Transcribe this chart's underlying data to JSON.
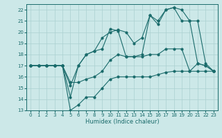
{
  "xlabel": "Humidex (Indice chaleur)",
  "xlim": [
    -0.5,
    23.5
  ],
  "ylim": [
    13,
    22.5
  ],
  "yticks": [
    13,
    14,
    15,
    16,
    17,
    18,
    19,
    20,
    21,
    22
  ],
  "xticks": [
    0,
    1,
    2,
    3,
    4,
    5,
    6,
    7,
    8,
    9,
    10,
    11,
    12,
    13,
    14,
    15,
    16,
    17,
    18,
    19,
    20,
    21,
    22,
    23
  ],
  "bg_color": "#cce8e8",
  "line_color": "#1a6b6b",
  "grid_color": "#aad0d0",
  "lines": [
    {
      "x": [
        0,
        1,
        2,
        3,
        4,
        5,
        6,
        7,
        8,
        9,
        10,
        11,
        12,
        13,
        14,
        15,
        16,
        17,
        18,
        19,
        20,
        21,
        22,
        23
      ],
      "y": [
        17,
        17,
        17,
        17,
        17,
        13,
        13.5,
        14.2,
        14.2,
        15,
        15.8,
        16,
        16,
        16,
        16,
        16,
        16.2,
        16.4,
        16.5,
        16.5,
        16.5,
        16.5,
        16.5,
        16.5
      ]
    },
    {
      "x": [
        0,
        1,
        2,
        3,
        4,
        5,
        6,
        7,
        8,
        9,
        10,
        11,
        12,
        13,
        14,
        15,
        16,
        17,
        18,
        19,
        20,
        21,
        22,
        23
      ],
      "y": [
        17,
        17,
        17,
        17,
        17,
        15.5,
        15.5,
        15.8,
        16,
        16.5,
        17.5,
        18,
        17.8,
        17.8,
        17.8,
        18,
        18,
        18.5,
        18.5,
        18.5,
        16.5,
        17.2,
        17,
        16.5
      ]
    },
    {
      "x": [
        0,
        1,
        2,
        3,
        4,
        5,
        6,
        7,
        8,
        9,
        10,
        11,
        12,
        13,
        14,
        15,
        16,
        17,
        18,
        19,
        20,
        21,
        22,
        23
      ],
      "y": [
        17,
        17,
        17,
        17,
        17,
        14.2,
        17,
        18,
        18.3,
        18.5,
        20.3,
        20.1,
        17.8,
        17.8,
        18,
        21.5,
        20.7,
        22,
        22.2,
        22,
        21,
        17.2,
        17,
        16.5
      ]
    },
    {
      "x": [
        0,
        1,
        2,
        3,
        4,
        5,
        6,
        7,
        8,
        9,
        10,
        11,
        12,
        13,
        14,
        15,
        16,
        17,
        18,
        19,
        20,
        21,
        22,
        23
      ],
      "y": [
        17,
        17,
        17,
        17,
        17,
        15.2,
        17,
        18,
        18.3,
        19.5,
        20,
        20.2,
        20,
        19,
        19.5,
        21.5,
        21,
        22,
        22.2,
        21,
        21,
        21,
        17.2,
        16.5
      ]
    }
  ]
}
